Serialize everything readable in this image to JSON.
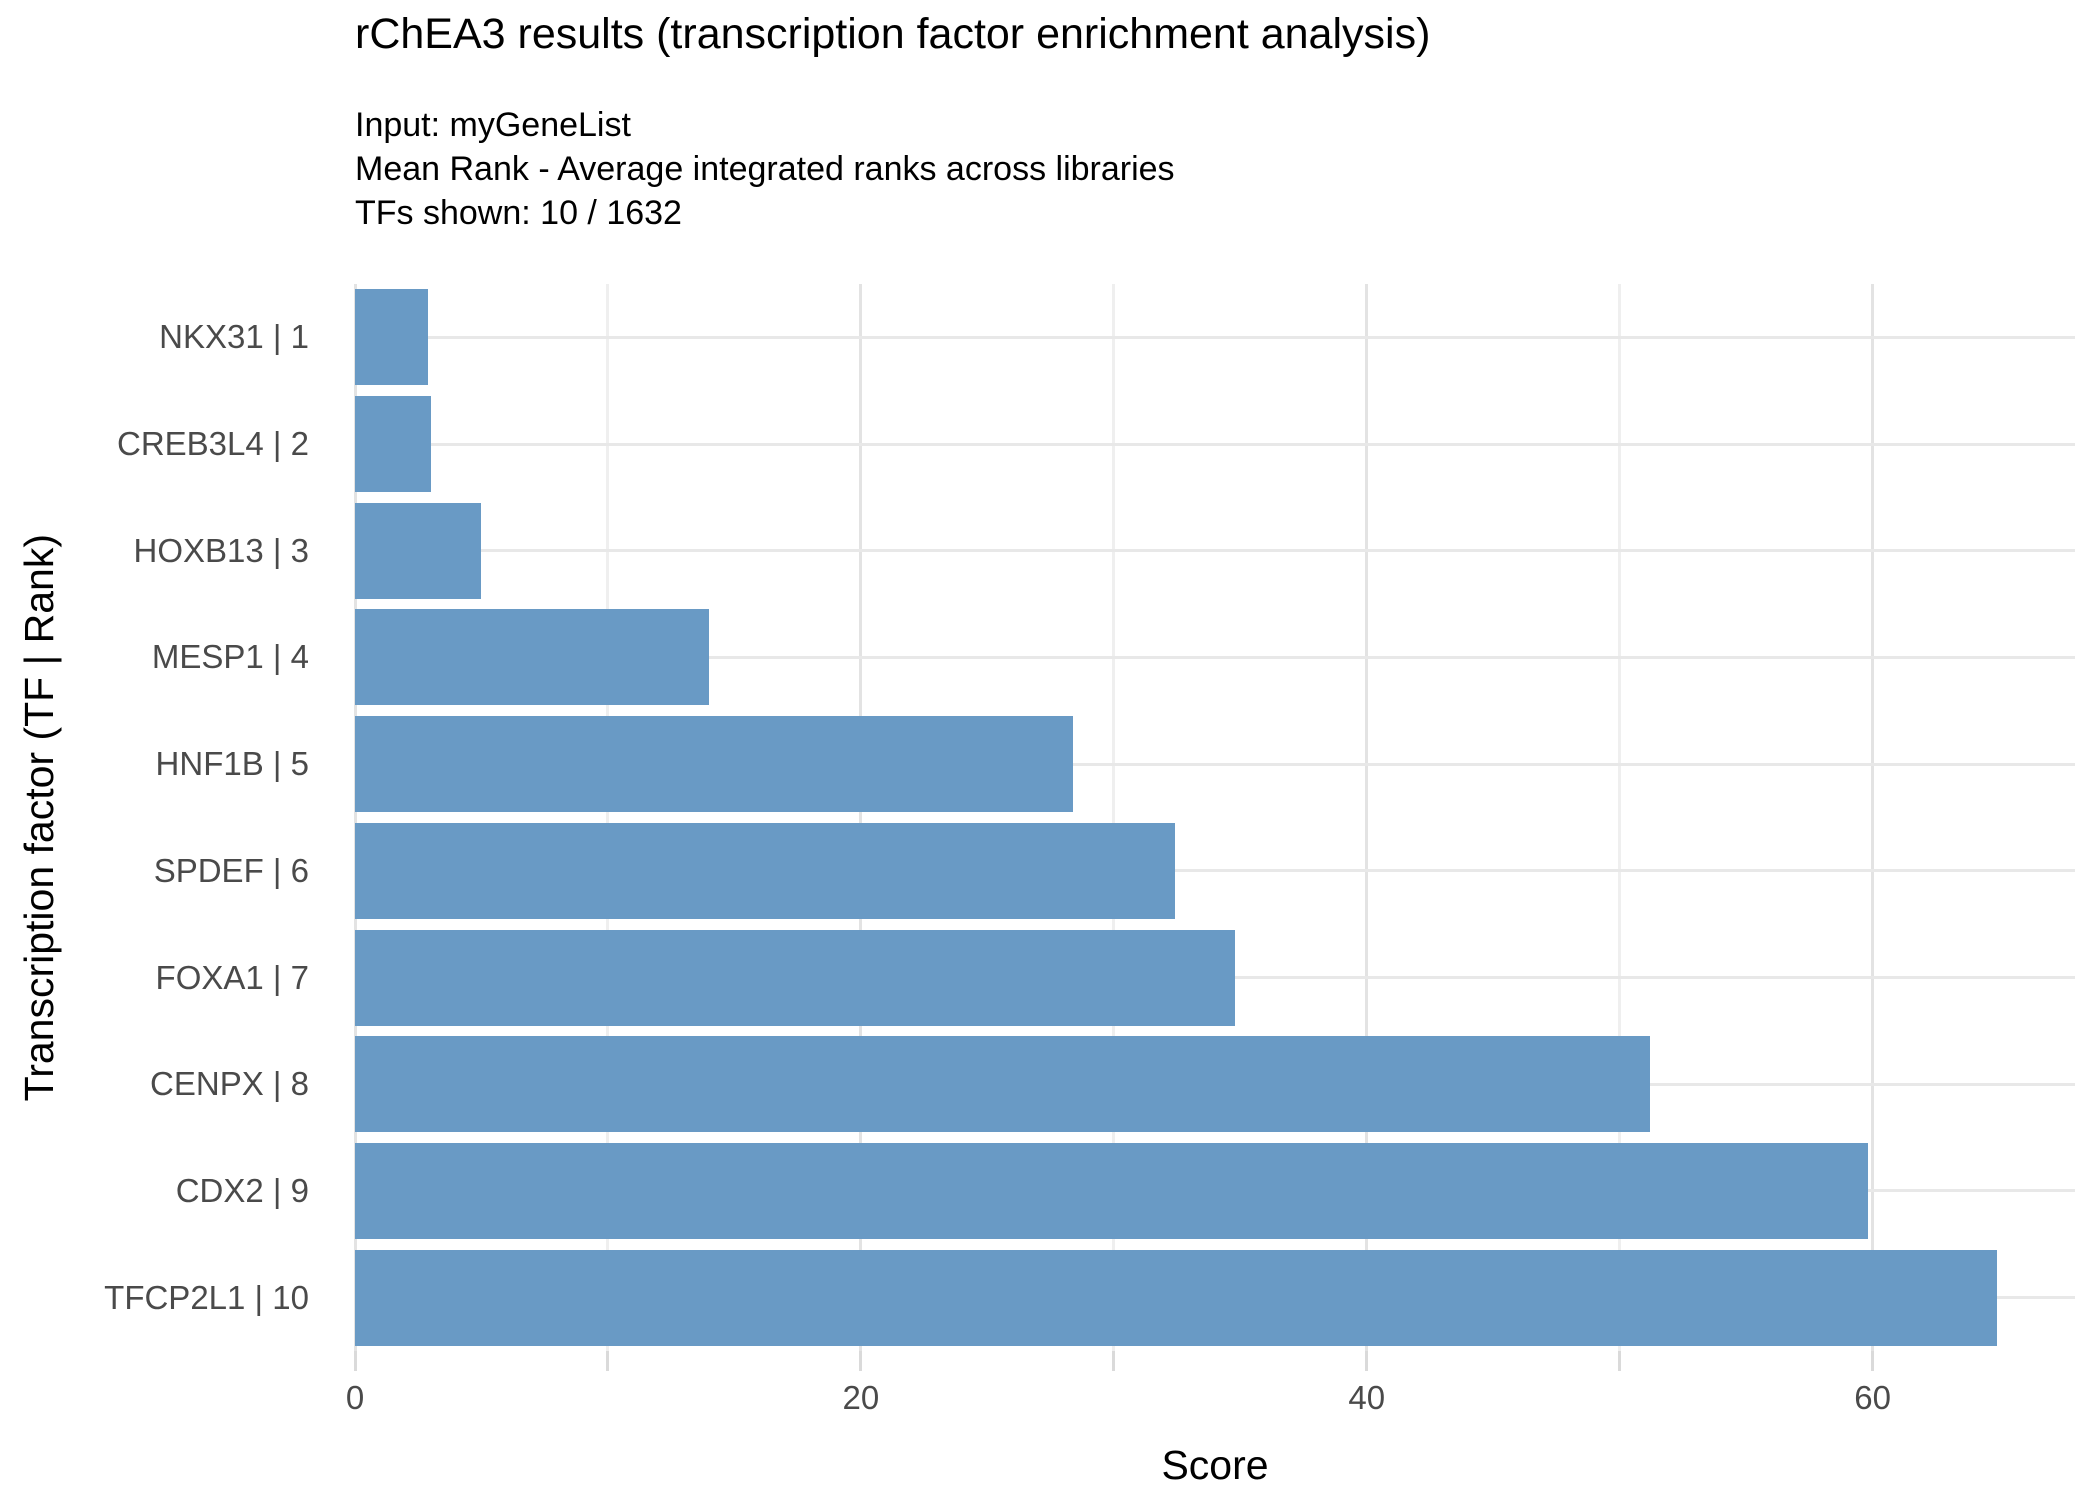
{
  "chart": {
    "title": "rChEA3 results (transcription factor enrichment analysis)",
    "subtitle_lines": [
      "Input: myGeneList",
      "Mean Rank - Average integrated ranks across libraries",
      "TFs shown: 10 / 1632"
    ],
    "xlabel": "Score",
    "ylabel": "Transcription factor (TF | Rank)"
  },
  "chart_data": {
    "type": "bar",
    "orientation": "horizontal",
    "title": "rChEA3 results (transcription factor enrichment analysis)",
    "subtitle": "Input: myGeneList | Mean Rank - Average integrated ranks across libraries | TFs shown: 10 / 1632",
    "xlabel": "Score",
    "ylabel": "Transcription factor (TF | Rank)",
    "categories": [
      "NKX31 | 1",
      "CREB3L4 | 2",
      "HOXB13 | 3",
      "MESP1 | 4",
      "HNF1B | 5",
      "SPDEF | 6",
      "FOXA1 | 7",
      "CENPX | 8",
      "CDX2 | 9",
      "TFCP2L1 | 10"
    ],
    "values": [
      2.9,
      3.0,
      5.0,
      14.0,
      28.4,
      32.4,
      34.8,
      51.2,
      59.8,
      64.9
    ],
    "xlim": [
      0,
      68
    ],
    "x_major_ticks": [
      0,
      20,
      40,
      60
    ],
    "x_minor_ticks": [
      10,
      30,
      50
    ],
    "x_all_tick_marks": [
      0,
      10,
      20,
      30,
      40,
      50,
      60
    ],
    "bar_color": "#699ac5",
    "grid": true,
    "legend_position": "none"
  }
}
